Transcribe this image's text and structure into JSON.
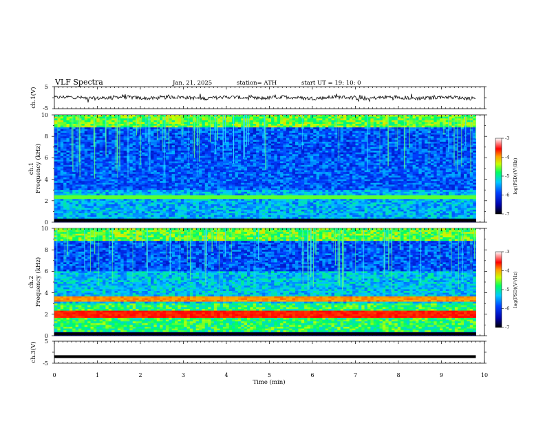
{
  "header": {
    "title": "VLF  Spectra",
    "date": "Jan. 21, 2025",
    "station": "station= ATH",
    "start": "start  UT  =   19: 10: 0"
  },
  "axes": {
    "ch1_volt": {
      "label": "ch.1(V)",
      "ticks": [
        "5",
        "-5"
      ]
    },
    "ch1_freq": {
      "label_line1": "ch.1",
      "label_line2": "Frequency (kHz)",
      "ticks": [
        "10",
        "8",
        "6",
        "4",
        "2",
        "0"
      ]
    },
    "ch2_freq": {
      "label_line1": "ch.2",
      "label_line2": "Frequency (kHz)",
      "ticks": [
        "10",
        "8",
        "6",
        "4",
        "2",
        "0"
      ]
    },
    "ch3_volt": {
      "label": "ch.3(V)",
      "ticks": [
        "5",
        "-5"
      ]
    },
    "time": {
      "label": "Time  (min)",
      "ticks": [
        "0",
        "1",
        "2",
        "3",
        "4",
        "5",
        "6",
        "7",
        "8",
        "9",
        "10"
      ]
    }
  },
  "colorbar1": {
    "label": "log(PSD)(V²/Hz)",
    "ticks": [
      "-3",
      "-4",
      "-5",
      "-6",
      "-7"
    ]
  },
  "colorbar2": {
    "label": "log(PSD)(V²/Hz)",
    "ticks": [
      "-3",
      "-4",
      "-5",
      "-6",
      "-7"
    ]
  },
  "chart_data": [
    {
      "type": "line",
      "panel": "ch.1 waveform",
      "xlabel": "Time  (min)",
      "ylabel": "ch.1(V)",
      "xlim": [
        0,
        10
      ],
      "ylim": [
        -5,
        5
      ],
      "x_extent": [
        0,
        9.8
      ],
      "mean_level": 0
    },
    {
      "type": "heatmap",
      "panel": "ch.1 spectrogram",
      "xlabel": "Time  (min)",
      "ylabel": "Frequency (kHz)",
      "xlim": [
        0,
        10
      ],
      "ylim": [
        0,
        10
      ],
      "x_extent": [
        0,
        9.8
      ],
      "colorscale_range": [
        -7,
        -3
      ],
      "colorbar_label": "log(PSD)(V²/Hz)"
    },
    {
      "type": "heatmap",
      "panel": "ch.2 spectrogram",
      "xlabel": "Time  (min)",
      "ylabel": "Frequency (kHz)",
      "xlim": [
        0,
        10
      ],
      "ylim": [
        0,
        10
      ],
      "x_extent": [
        0,
        9.8
      ],
      "colorscale_range": [
        -7,
        -3
      ],
      "colorbar_label": "log(PSD)(V²/Hz)"
    },
    {
      "type": "line",
      "panel": "ch.3 waveform",
      "xlabel": "Time  (min)",
      "ylabel": "ch.3(V)",
      "xlim": [
        0,
        10
      ],
      "ylim": [
        -5,
        5
      ],
      "x_extent": [
        0,
        9.8
      ],
      "mean_level": -2
    }
  ]
}
